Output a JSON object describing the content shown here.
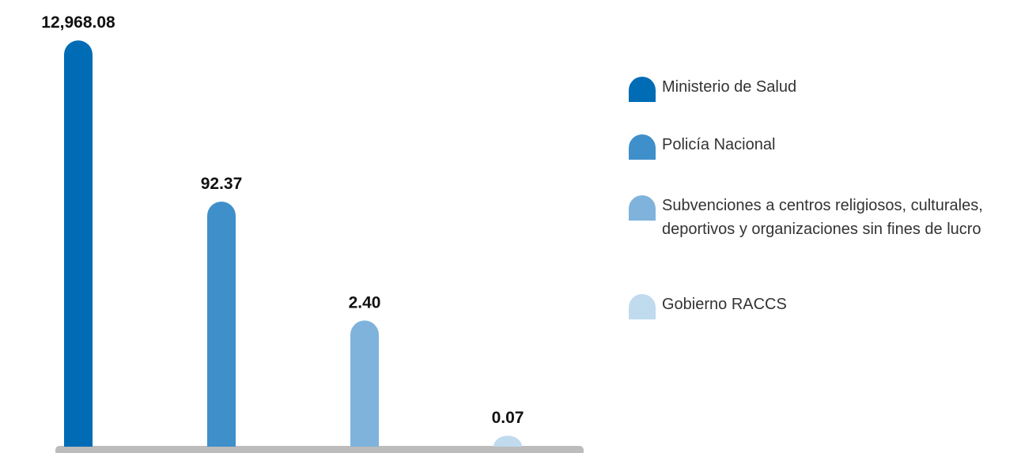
{
  "chart_data": {
    "type": "bar",
    "log_scale": true,
    "ylim": [
      0.05,
      14000
    ],
    "series": [
      {
        "name": "Ministerio de Salud",
        "color": "#006cb5",
        "values": [
          12968.08
        ],
        "value_labels": [
          "12,968.08"
        ]
      },
      {
        "name": "Policía Nacional",
        "color": "#3f8fca",
        "values": [
          92.37
        ],
        "value_labels": [
          "92.37"
        ]
      },
      {
        "name": "Subvenciones a centros religiosos, culturales, deportivos y organizaciones sin fines de lucro",
        "color": "#7fb3dc",
        "values": [
          2.4
        ],
        "value_labels": [
          "2.40"
        ]
      },
      {
        "name": "Gobierno RACCS",
        "color": "#c0daee",
        "values": [
          0.07
        ],
        "value_labels": [
          "0.07"
        ]
      }
    ]
  }
}
